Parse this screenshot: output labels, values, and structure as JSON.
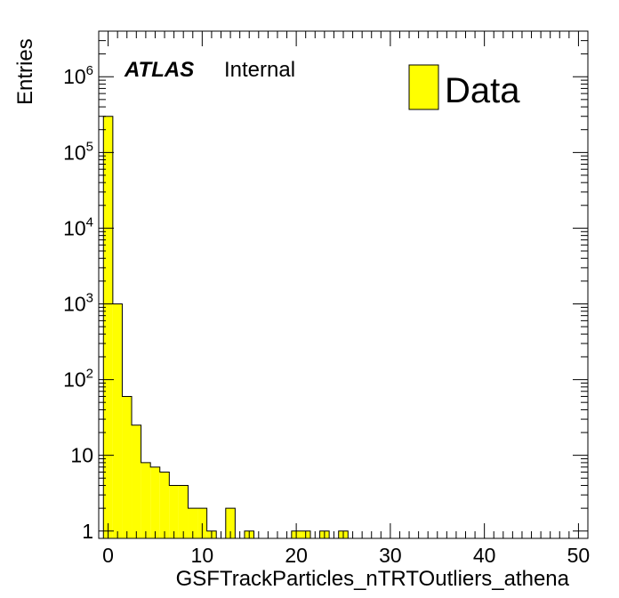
{
  "chart_data": {
    "type": "bar",
    "xlabel": "GSFTrackParticles_nTRTOutliers_athena",
    "ylabel": "Entries",
    "xlim": [
      -1,
      51
    ],
    "ylim": [
      0.8,
      4000000
    ],
    "yscale": "log",
    "grid": false,
    "legend_position": "top-right",
    "x_ticks": [
      0,
      10,
      20,
      30,
      40,
      50
    ],
    "y_ticks": [
      {
        "value": 1,
        "base": "1",
        "exp": ""
      },
      {
        "value": 10,
        "base": "10",
        "exp": ""
      },
      {
        "value": 100,
        "base": "10",
        "exp": "2"
      },
      {
        "value": 1000,
        "base": "10",
        "exp": "3"
      },
      {
        "value": 10000,
        "base": "10",
        "exp": "4"
      },
      {
        "value": 100000,
        "base": "10",
        "exp": "5"
      },
      {
        "value": 1000000,
        "base": "10",
        "exp": "6"
      }
    ],
    "bin_width": 1,
    "bin_lows": [
      -0.5,
      0.5,
      1.5,
      2.5,
      3.5,
      4.5,
      5.5,
      6.5,
      7.5,
      8.5,
      9.5,
      10.5,
      11.5,
      12.5,
      13.5,
      14.5,
      15.5,
      16.5,
      17.5,
      18.5,
      19.5,
      20.5,
      21.5,
      22.5,
      23.5,
      24.5,
      25.5,
      26.5
    ],
    "series": [
      {
        "name": "Data",
        "color": "#ffff00",
        "values": [
          300000,
          1000,
          60,
          25,
          8,
          7,
          6,
          4,
          4,
          2,
          2,
          1,
          0,
          2,
          0,
          1,
          0,
          0,
          0,
          0,
          1,
          1,
          0,
          1,
          0,
          1,
          0,
          0
        ]
      }
    ]
  },
  "annotation": {
    "brand": "ATLAS",
    "status": "Internal"
  },
  "legend": {
    "label": "Data"
  }
}
